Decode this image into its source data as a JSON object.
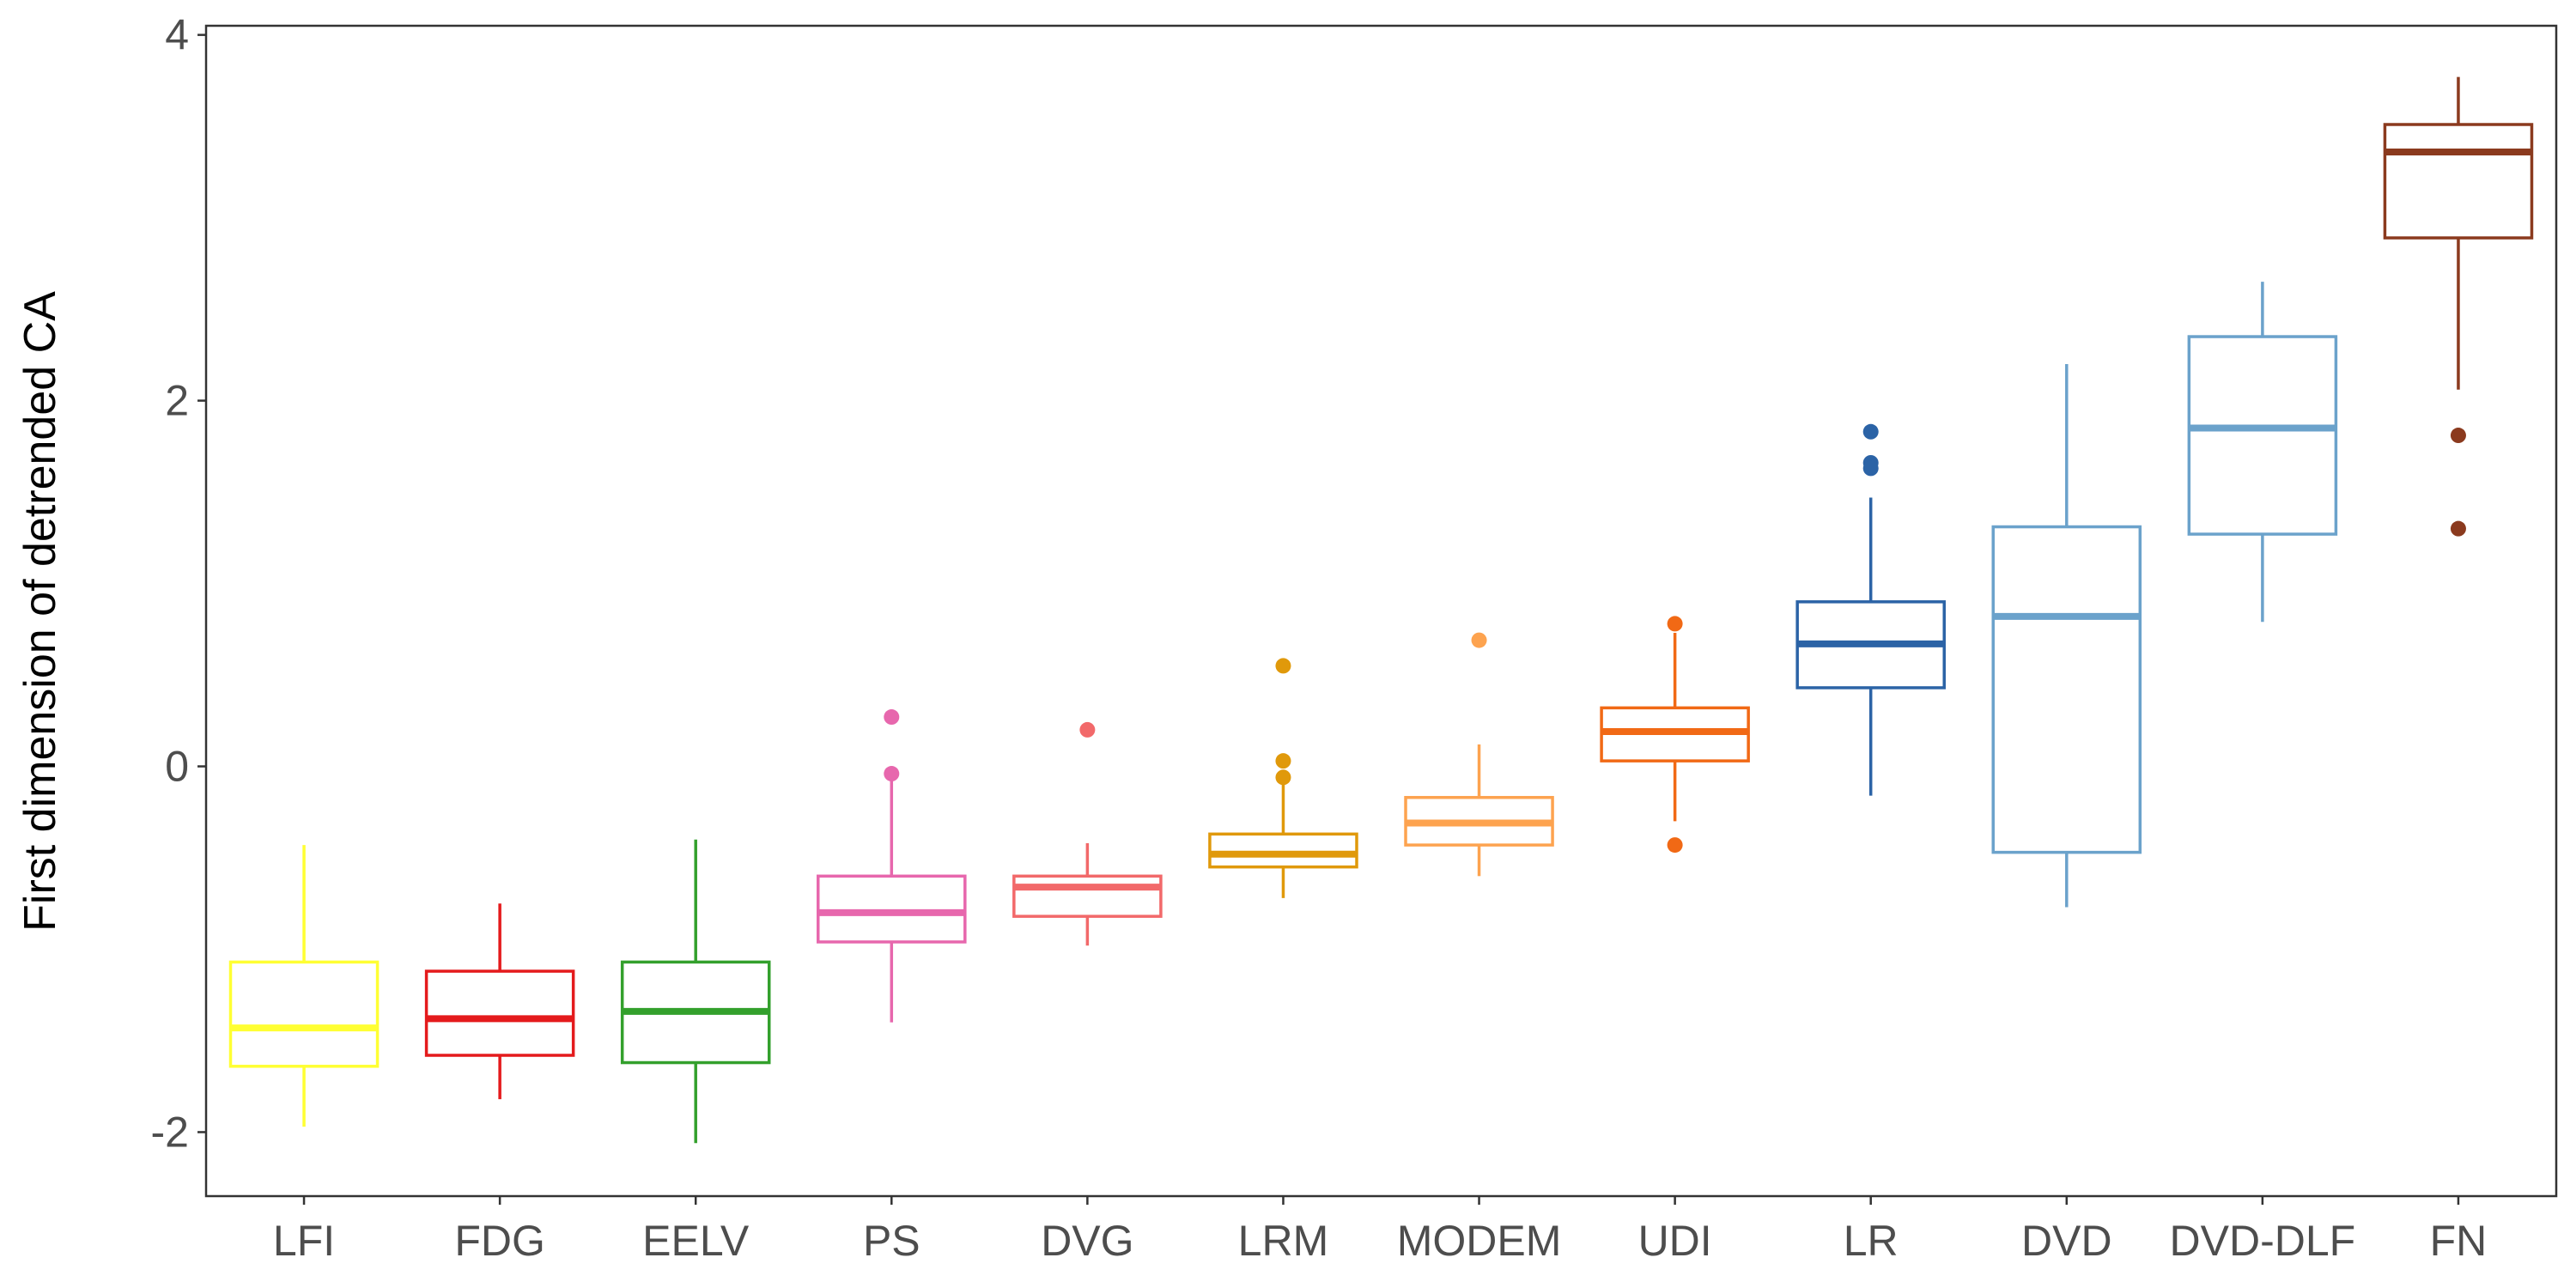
{
  "chart_data": {
    "type": "box",
    "xlabel": "",
    "ylabel": "First dimension of detrended CA",
    "ylim": [
      -2.35,
      4.05
    ],
    "y_ticks": [
      -2,
      0,
      2,
      4
    ],
    "y_tick_labels": [
      "-2",
      "0",
      "2",
      "4"
    ],
    "grid": false,
    "legend": "none",
    "categories": [
      "LFI",
      "FDG",
      "EELV",
      "PS",
      "DVG",
      "LRM",
      "MODEM",
      "UDI",
      "LR",
      "DVD",
      "DVD-DLF",
      "FN"
    ],
    "boxes": [
      {
        "category": "LFI",
        "color": "#ffff33",
        "whisker_low": -1.97,
        "q1": -1.64,
        "median": -1.43,
        "q3": -1.07,
        "whisker_high": -0.43,
        "outliers": []
      },
      {
        "category": "FDG",
        "color": "#e41a1c",
        "whisker_low": -1.82,
        "q1": -1.58,
        "median": -1.38,
        "q3": -1.12,
        "whisker_high": -0.75,
        "outliers": []
      },
      {
        "category": "EELV",
        "color": "#33a02c",
        "whisker_low": -2.06,
        "q1": -1.62,
        "median": -1.34,
        "q3": -1.07,
        "whisker_high": -0.4,
        "outliers": []
      },
      {
        "category": "PS",
        "color": "#e767ad",
        "whisker_low": -1.4,
        "q1": -0.96,
        "median": -0.8,
        "q3": -0.6,
        "whisker_high": -0.05,
        "outliers": [
          0.27,
          -0.04
        ]
      },
      {
        "category": "DVG",
        "color": "#f2696a",
        "whisker_low": -0.98,
        "q1": -0.82,
        "median": -0.66,
        "q3": -0.6,
        "whisker_high": -0.42,
        "outliers": [
          0.2
        ]
      },
      {
        "category": "LRM",
        "color": "#e0990b",
        "whisker_low": -0.72,
        "q1": -0.55,
        "median": -0.48,
        "q3": -0.37,
        "whisker_high": -0.07,
        "outliers": [
          0.55,
          0.03,
          -0.06
        ]
      },
      {
        "category": "MODEM",
        "color": "#fda34f",
        "whisker_low": -0.6,
        "q1": -0.43,
        "median": -0.31,
        "q3": -0.17,
        "whisker_high": 0.12,
        "outliers": [
          0.69
        ]
      },
      {
        "category": "UDI",
        "color": "#f16915",
        "whisker_low": -0.3,
        "q1": 0.03,
        "median": 0.19,
        "q3": 0.32,
        "whisker_high": 0.73,
        "outliers": [
          0.78,
          -0.43
        ]
      },
      {
        "category": "LR",
        "color": "#2b63a6",
        "whisker_low": -0.16,
        "q1": 0.43,
        "median": 0.67,
        "q3": 0.9,
        "whisker_high": 1.47,
        "outliers": [
          1.83,
          1.66,
          1.63
        ]
      },
      {
        "category": "DVD",
        "color": "#6ba2cb",
        "whisker_low": -0.77,
        "q1": -0.47,
        "median": 0.82,
        "q3": 1.31,
        "whisker_high": 2.2,
        "outliers": []
      },
      {
        "category": "DVD-DLF",
        "color": "#6ba2cb",
        "whisker_low": 0.79,
        "q1": 1.27,
        "median": 1.85,
        "q3": 2.35,
        "whisker_high": 2.65,
        "outliers": []
      },
      {
        "category": "FN",
        "color": "#8b3a1e",
        "whisker_low": 2.06,
        "q1": 2.89,
        "median": 3.36,
        "q3": 3.51,
        "whisker_high": 3.77,
        "outliers": [
          1.81,
          1.3
        ]
      }
    ]
  }
}
